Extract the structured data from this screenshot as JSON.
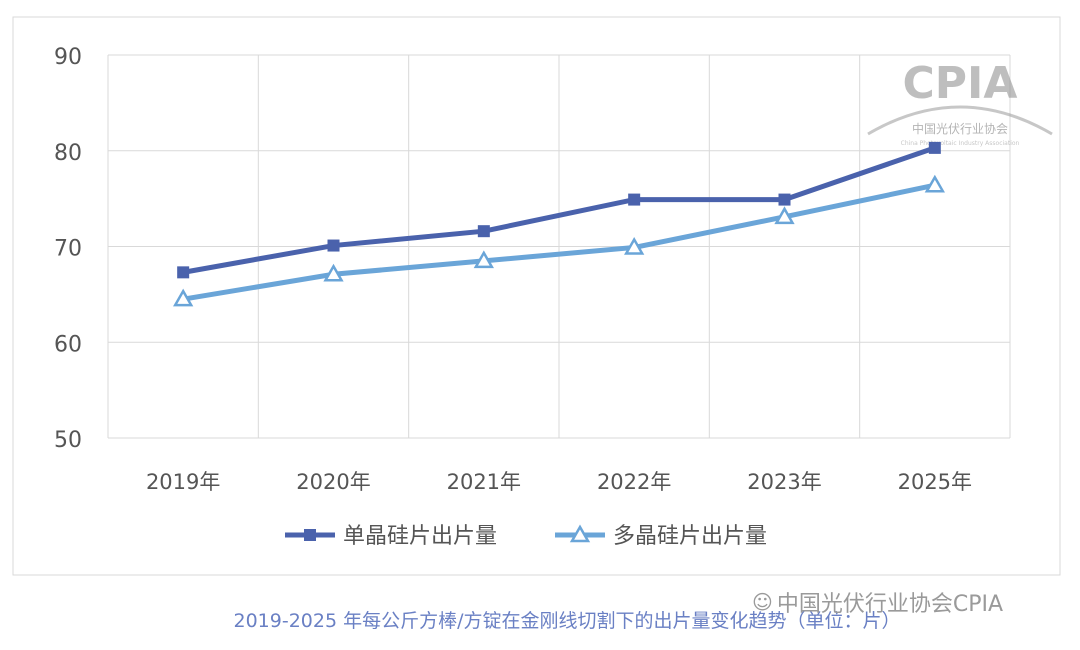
{
  "chart_data": {
    "type": "line",
    "categories": [
      "2019年",
      "2020年",
      "2021年",
      "2022年",
      "2023年",
      "2025年"
    ],
    "series": [
      {
        "name": "单晶硅片出片量",
        "values": [
          67.3,
          70.1,
          71.6,
          74.9,
          74.9,
          80.3
        ],
        "color": "#4a62ac",
        "marker": "square"
      },
      {
        "name": "多晶硅片出片量",
        "values": [
          64.5,
          67.1,
          68.5,
          69.9,
          73.1,
          76.4
        ],
        "color": "#6aa5d8",
        "marker": "triangle"
      }
    ],
    "ylim": [
      50,
      90
    ],
    "yticks": [
      50,
      60,
      70,
      80,
      90
    ],
    "grid": true,
    "legend": "bottom"
  },
  "caption": "2019-2025 年每公斤方棒/方锭在金刚线切割下的出片量变化趋势（单位：片）",
  "watermark": "中国光伏行业协会CPIA",
  "logo": {
    "text": "CPIA",
    "cn": "中国光伏行业协会",
    "en": "China Photovoltaic Industry Association"
  }
}
